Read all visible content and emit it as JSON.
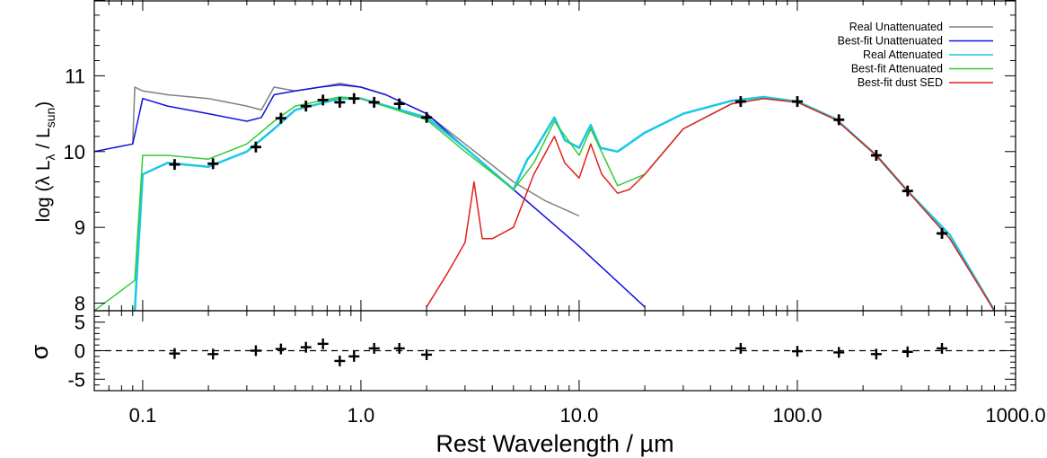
{
  "chart_data": [
    {
      "type": "line",
      "panel": "sed",
      "xlabel": "Rest Wavelength / µm",
      "ylabel": "log (λ L",
      "ylabel_parts": {
        "lambda_sub": "λ",
        "slash": " / L",
        "sun_sub": "sun",
        "close": ")"
      },
      "xscale": "log",
      "xlim": [
        0.06,
        1000
      ],
      "ylim": [
        7.9,
        12.0
      ],
      "x_ticks": [
        0.1,
        1.0,
        10.0,
        100.0,
        1000.0
      ],
      "x_tick_labels": [
        "0.1",
        "1.0",
        "10.0",
        "100.0",
        "1000.0"
      ],
      "y_ticks": [
        8,
        9,
        10,
        11
      ],
      "y_tick_labels": [
        "8",
        "9",
        "10",
        "11"
      ],
      "legend_position": "top-right",
      "series": [
        {
          "name": "Real Unattenuated",
          "color": "#808080",
          "x": [
            0.09,
            0.092,
            0.1,
            0.13,
            0.2,
            0.3,
            0.35,
            0.4,
            0.5,
            0.65,
            0.8,
            1.0,
            1.3,
            2.0,
            3.0,
            5.0,
            7.0,
            10.0
          ],
          "y": [
            10.1,
            10.85,
            10.8,
            10.75,
            10.7,
            10.6,
            10.55,
            10.85,
            10.8,
            10.85,
            10.9,
            10.85,
            10.75,
            10.5,
            10.1,
            9.6,
            9.35,
            9.15
          ]
        },
        {
          "name": "Best-fit Unattenuated",
          "color": "#1010e0",
          "x": [
            0.06,
            0.09,
            0.1,
            0.13,
            0.2,
            0.3,
            0.35,
            0.4,
            0.5,
            0.65,
            0.8,
            1.0,
            1.3,
            2.0,
            3.0,
            5.0,
            10.0,
            20.0
          ],
          "y": [
            10.0,
            10.1,
            10.7,
            10.6,
            10.5,
            10.4,
            10.45,
            10.75,
            10.8,
            10.85,
            10.88,
            10.85,
            10.75,
            10.5,
            10.05,
            9.5,
            8.75,
            7.95
          ]
        },
        {
          "name": "Real Attenuated",
          "color": "#18c8e8",
          "x": [
            0.092,
            0.1,
            0.13,
            0.2,
            0.3,
            0.4,
            0.5,
            0.8,
            1.0,
            2.0,
            3.0,
            5.0,
            5.8,
            6.2,
            7.7,
            8.6,
            10.0,
            11.3,
            12.5,
            15.0,
            20.0,
            30.0,
            50.0,
            70.0,
            100.0,
            150.0,
            230.0,
            320.0,
            500.0,
            800.0
          ],
          "y": [
            7.9,
            9.7,
            9.85,
            9.8,
            10.0,
            10.3,
            10.55,
            10.7,
            10.7,
            10.45,
            10.05,
            9.5,
            9.9,
            10.0,
            10.45,
            10.15,
            10.05,
            10.35,
            10.05,
            10.0,
            10.25,
            10.5,
            10.67,
            10.72,
            10.66,
            10.43,
            9.95,
            9.48,
            8.9,
            7.9
          ]
        },
        {
          "name": "Best-fit Attenuated",
          "color": "#33cc33",
          "x": [
            0.06,
            0.092,
            0.1,
            0.13,
            0.2,
            0.3,
            0.4,
            0.5,
            0.8,
            1.0,
            2.0,
            3.0,
            5.0,
            6.2,
            7.7,
            10.0,
            11.3,
            15.0,
            20.0,
            30.0,
            50.0,
            70.0,
            100.0,
            150.0,
            230.0,
            320.0,
            500.0,
            800.0
          ],
          "y": [
            7.9,
            8.3,
            9.95,
            9.95,
            9.9,
            10.1,
            10.4,
            10.6,
            10.72,
            10.7,
            10.42,
            10.0,
            9.5,
            9.85,
            10.4,
            9.95,
            10.3,
            9.55,
            9.7,
            10.3,
            10.63,
            10.7,
            10.65,
            10.42,
            9.95,
            9.48,
            8.85,
            7.9
          ]
        },
        {
          "name": "Best-fit dust SED",
          "color": "#e02020",
          "x": [
            2.0,
            2.5,
            3.0,
            3.3,
            3.6,
            4.0,
            5.0,
            6.2,
            7.7,
            8.6,
            10.0,
            11.3,
            12.7,
            15.0,
            17.0,
            20.0,
            30.0,
            50.0,
            70.0,
            100.0,
            150.0,
            230.0,
            320.0,
            500.0,
            800.0
          ],
          "y": [
            7.95,
            8.4,
            8.8,
            9.6,
            8.85,
            8.85,
            9.0,
            9.7,
            10.2,
            9.85,
            9.65,
            10.1,
            9.7,
            9.45,
            9.5,
            9.7,
            10.3,
            10.63,
            10.7,
            10.65,
            10.42,
            9.95,
            9.48,
            8.85,
            7.9
          ]
        }
      ],
      "observed_points": {
        "x": [
          0.14,
          0.21,
          0.33,
          0.43,
          0.56,
          0.67,
          0.8,
          0.93,
          1.15,
          1.5,
          2.0,
          55.0,
          100.0,
          155.0,
          230.0,
          320.0,
          460.0
        ],
        "y": [
          9.83,
          9.84,
          10.06,
          10.44,
          10.6,
          10.68,
          10.65,
          10.7,
          10.65,
          10.63,
          10.45,
          10.66,
          10.66,
          10.42,
          9.95,
          9.48,
          8.92
        ]
      }
    },
    {
      "type": "scatter",
      "panel": "residuals",
      "ylabel": "σ",
      "xscale": "log",
      "xlim": [
        0.06,
        1000
      ],
      "ylim": [
        -7,
        7
      ],
      "y_ticks": [
        -5,
        0,
        5
      ],
      "y_tick_labels": [
        "-5",
        "0",
        "5"
      ],
      "reference_line": 0,
      "x": [
        0.14,
        0.21,
        0.33,
        0.43,
        0.56,
        0.67,
        0.8,
        0.93,
        1.15,
        1.5,
        2.0,
        55.0,
        100.0,
        155.0,
        230.0,
        320.0,
        460.0
      ],
      "y": [
        -0.5,
        -0.6,
        0.0,
        0.3,
        0.6,
        1.2,
        -1.8,
        -1.0,
        0.4,
        0.4,
        -0.7,
        0.4,
        -0.1,
        -0.3,
        -0.6,
        -0.2,
        0.4
      ]
    }
  ]
}
